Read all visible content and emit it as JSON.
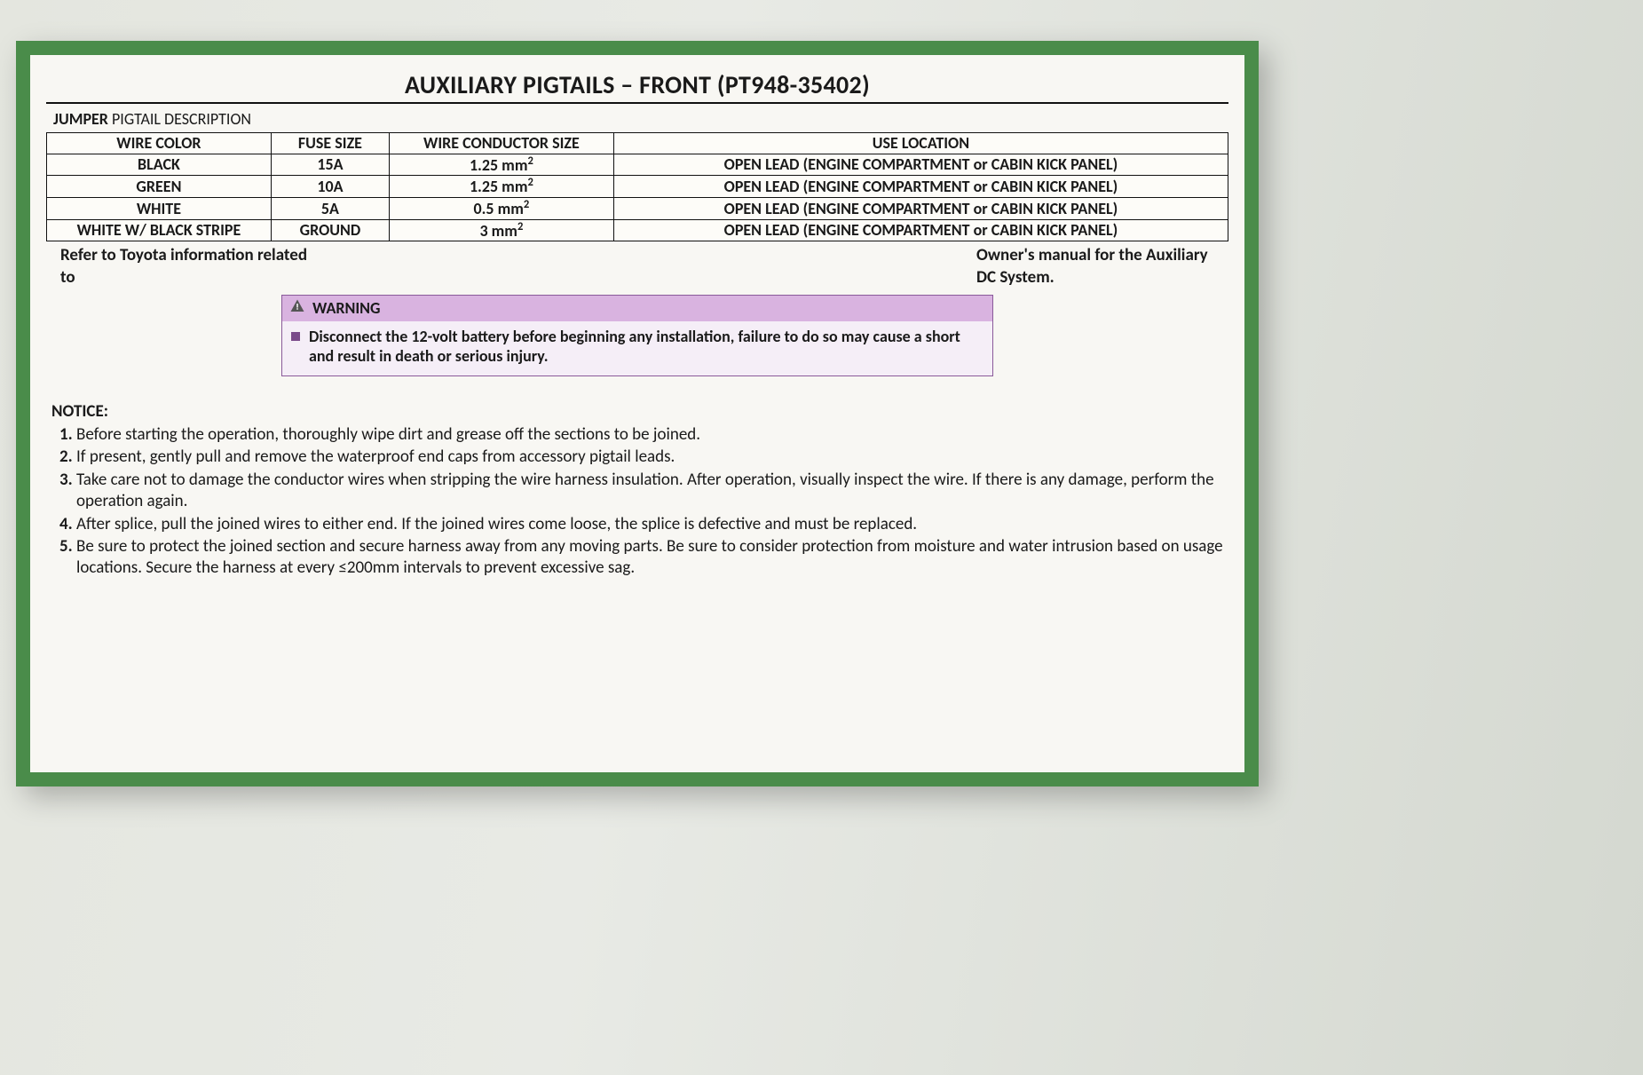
{
  "colors": {
    "border_green": "#4a8c4a",
    "warning_header_bg": "#d9b3e0",
    "warning_body_bg": "#f5eef7",
    "page_bg": "#e8eae5",
    "table_border": "#111111",
    "text": "#1a1a1a",
    "bullet_purple": "#7a4a8a"
  },
  "title": "AUXILIARY PIGTAILS – FRONT (PT948-35402)",
  "section_label_bold": "JUMPER",
  "section_label_rest": " PIGTAIL DESCRIPTION",
  "table": {
    "columns": [
      "WIRE COLOR",
      "FUSE SIZE",
      "WIRE CONDUCTOR SIZE",
      "USE LOCATION"
    ],
    "column_widths_pct": [
      19,
      10,
      19,
      52
    ],
    "rows": [
      {
        "wire_color": "BLACK",
        "fuse_size": "15A",
        "conductor_size": "1.25 mm",
        "conductor_exp": "2",
        "use_location": "OPEN LEAD (ENGINE COMPARTMENT or CABIN KICK PANEL)"
      },
      {
        "wire_color": "GREEN",
        "fuse_size": "10A",
        "conductor_size": "1.25 mm",
        "conductor_exp": "2",
        "use_location": "OPEN LEAD (ENGINE COMPARTMENT or CABIN KICK PANEL)"
      },
      {
        "wire_color": "WHITE",
        "fuse_size": "5A",
        "conductor_size": "0.5 mm",
        "conductor_exp": "2",
        "use_location": "OPEN LEAD (ENGINE COMPARTMENT or CABIN KICK PANEL)"
      },
      {
        "wire_color": "WHITE W/ BLACK STRIPE",
        "fuse_size": "GROUND",
        "conductor_size": "3 mm",
        "conductor_exp": "2",
        "use_location": "OPEN LEAD (ENGINE COMPARTMENT or CABIN KICK PANEL)"
      }
    ]
  },
  "refer_left": "Refer to Toyota information related to",
  "refer_right": "Owner's manual for the Auxiliary DC System.",
  "warning": {
    "icon": "warning-triangle-icon",
    "label": "WARNING",
    "text": "Disconnect the 12-volt battery before beginning any installation, failure to do so may cause a short and result in death or serious injury."
  },
  "notice": {
    "title": "NOTICE:",
    "items": [
      "Before starting the operation, thoroughly wipe dirt and grease off the sections to be joined.",
      "If present, gently pull and remove the waterproof end caps from accessory pigtail leads.",
      "Take care not to damage the conductor wires when stripping the wire harness insulation.  After operation, visually inspect the wire.  If there is any damage, perform the operation again.",
      "After splice, pull the joined wires to either end.  If the joined wires come loose, the splice is defective and must be replaced.",
      "Be sure to protect the joined section and secure harness away from any moving parts.  Be sure to consider protection from moisture and water intrusion based on usage locations.  Secure the harness at every ≤200mm intervals to prevent excessive sag."
    ]
  }
}
